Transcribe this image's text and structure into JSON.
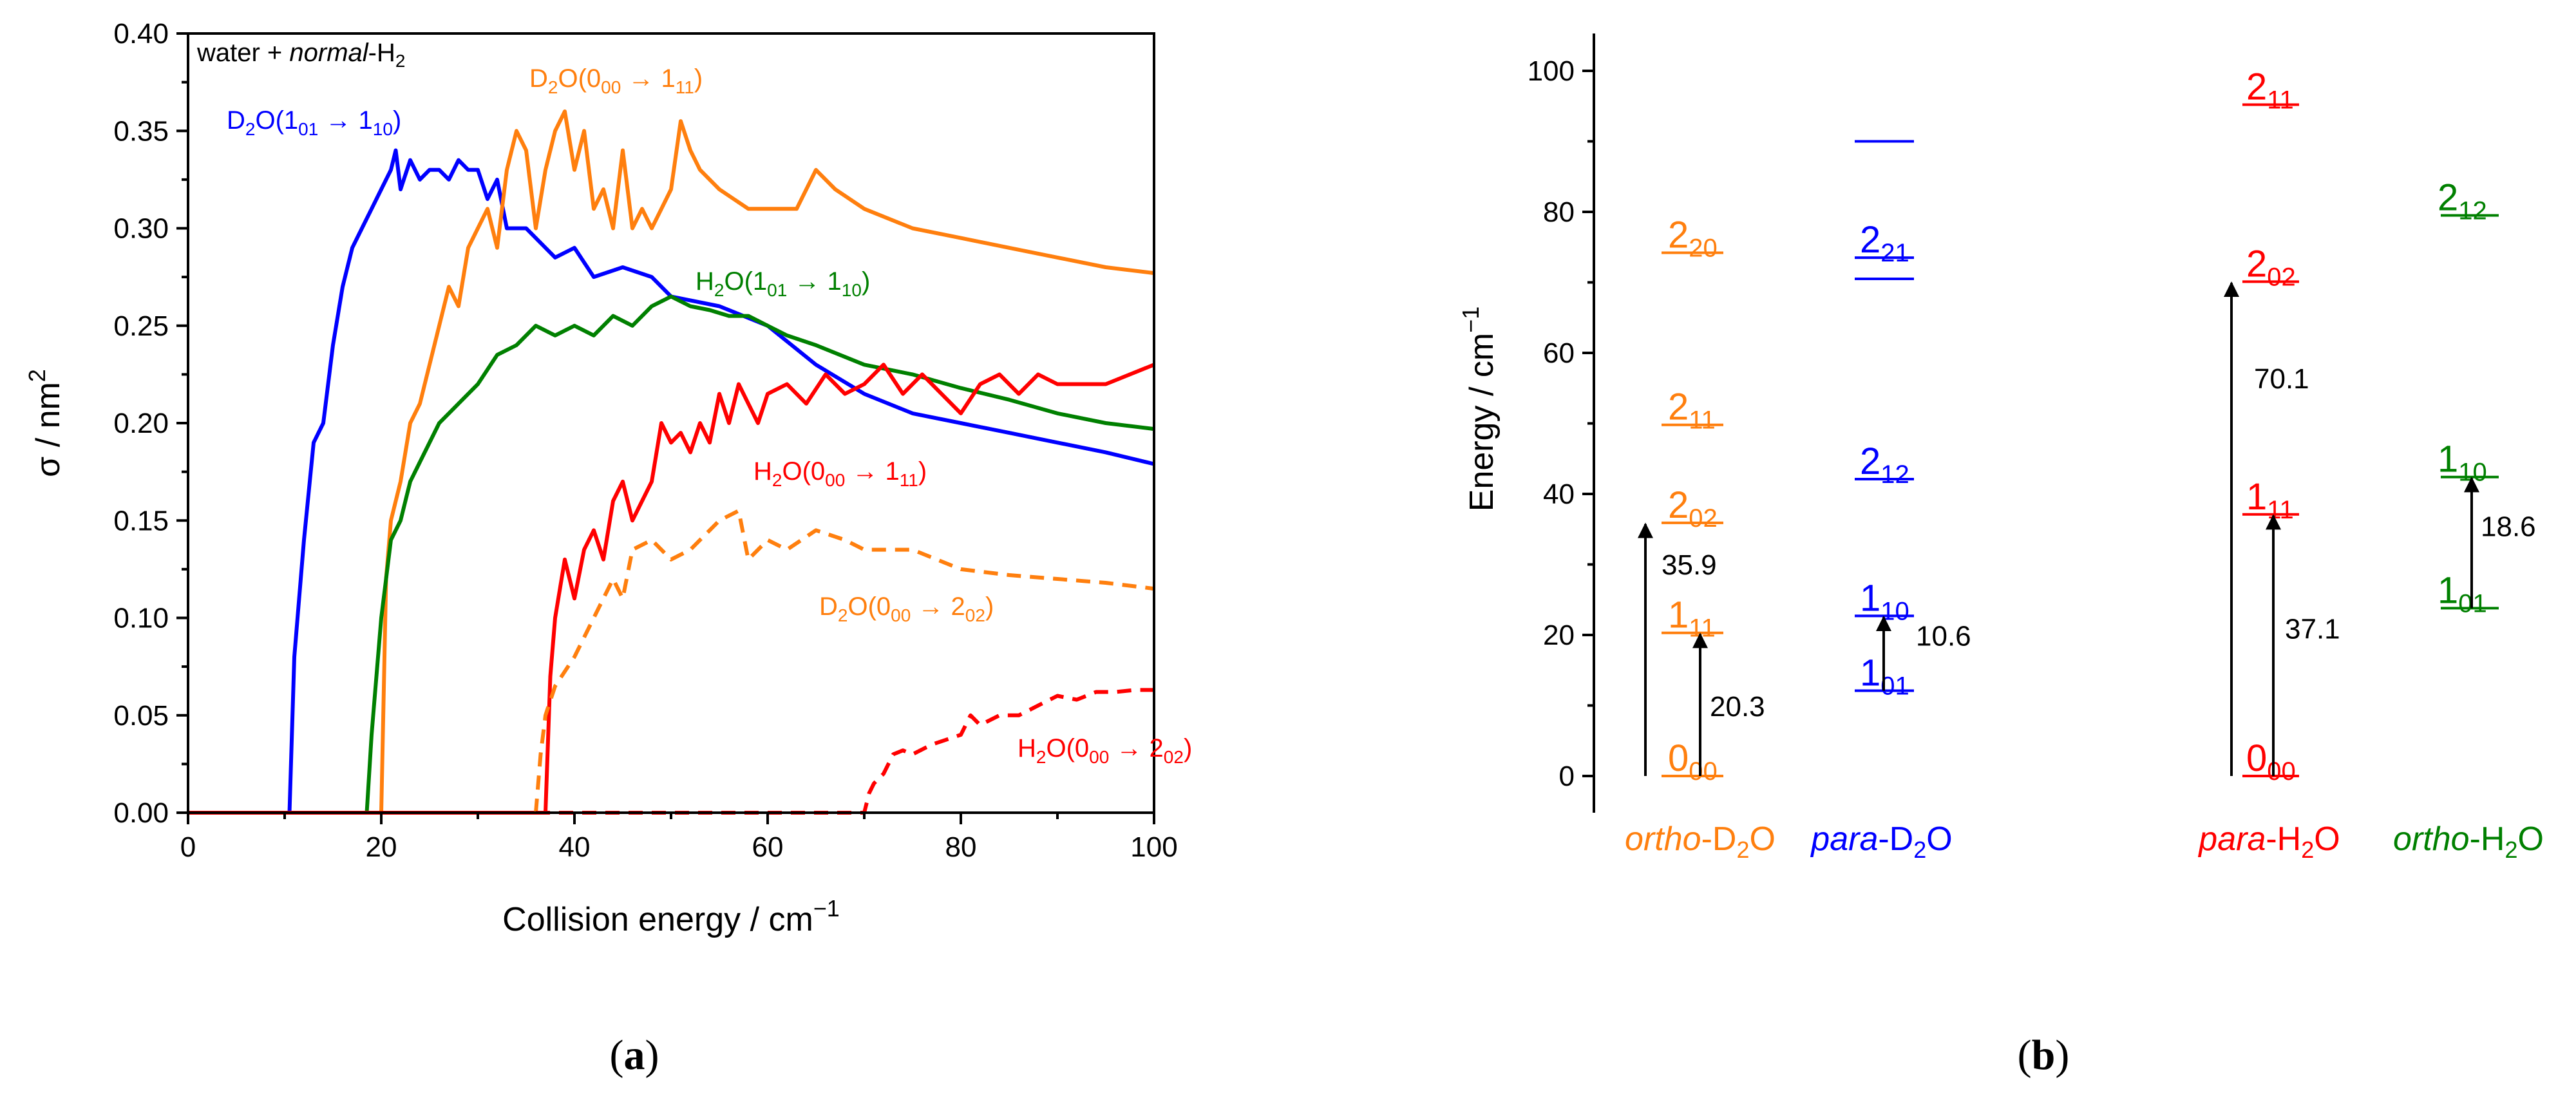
{
  "panels": {
    "a_label_open": "(",
    "a_label_letter": "a",
    "a_label_close": ")",
    "b_label_open": "(",
    "b_label_letter": "b",
    "b_label_close": ")"
  },
  "colors": {
    "d2o_ortho": "#ff7f0e",
    "d2o_para": "#0000ff",
    "h2o_para": "#ff0000",
    "h2o_ortho": "#008000",
    "axis": "#000000"
  },
  "chart_data": [
    {
      "type": "line",
      "panel": "a",
      "title": "",
      "inset_text": {
        "prefix": "water + ",
        "italic": "normal",
        "suffix": "-H",
        "sub": "2"
      },
      "xlabel": {
        "text": "Collision energy / cm",
        "sup": "−1"
      },
      "ylabel": {
        "text": "σ / nm",
        "sup": "2"
      },
      "xlim": [
        0,
        100
      ],
      "ylim": [
        0,
        0.4
      ],
      "xticks": [
        "0",
        "20",
        "40",
        "60",
        "80",
        "100"
      ],
      "xtick_values": [
        0,
        20,
        40,
        60,
        80,
        100
      ],
      "yticks": [
        "0.00",
        "0.05",
        "0.10",
        "0.15",
        "0.20",
        "0.25",
        "0.30",
        "0.35",
        "0.40"
      ],
      "ytick_values": [
        0,
        0.05,
        0.1,
        0.15,
        0.2,
        0.25,
        0.3,
        0.35,
        0.4
      ],
      "series": [
        {
          "name": "D2O(101 → 110)",
          "label": {
            "main": "D",
            "sub1": "2",
            "mid": "O(1",
            "sub2": "01",
            "arrow": " → 1",
            "sub3": "10",
            "end": ")"
          },
          "color": "#0000ff",
          "dashed": false,
          "x": [
            0,
            10.5,
            11,
            12,
            13,
            14,
            15,
            16,
            17,
            18,
            19,
            20,
            21,
            21.5,
            22,
            23,
            24,
            25,
            26,
            27,
            28,
            29,
            30,
            31,
            32,
            33,
            35,
            38,
            40,
            42,
            45,
            48,
            50,
            55,
            60,
            65,
            70,
            75,
            80,
            85,
            90,
            95,
            100
          ],
          "y": [
            0,
            0,
            0.08,
            0.14,
            0.19,
            0.2,
            0.24,
            0.27,
            0.29,
            0.3,
            0.31,
            0.32,
            0.33,
            0.34,
            0.32,
            0.335,
            0.325,
            0.33,
            0.33,
            0.325,
            0.335,
            0.33,
            0.33,
            0.315,
            0.325,
            0.3,
            0.3,
            0.285,
            0.29,
            0.275,
            0.28,
            0.275,
            0.265,
            0.26,
            0.25,
            0.23,
            0.215,
            0.205,
            0.2,
            0.195,
            0.19,
            0.185,
            0.179
          ]
        },
        {
          "name": "D2O(000 → 111)",
          "label": {
            "main": "D",
            "sub1": "2",
            "mid": "O(0",
            "sub2": "00",
            "arrow": " → 1",
            "sub3": "11",
            "end": ")"
          },
          "color": "#ff7f0e",
          "dashed": false,
          "x": [
            0,
            20,
            20.5,
            21,
            22,
            23,
            24,
            25,
            26,
            27,
            28,
            29,
            30,
            31,
            32,
            33,
            34,
            35,
            36,
            37,
            38,
            39,
            40,
            41,
            42,
            43,
            44,
            45,
            46,
            47,
            48,
            49,
            50,
            51,
            52,
            53,
            55,
            58,
            60,
            63,
            65,
            67,
            70,
            75,
            80,
            85,
            90,
            95,
            100
          ],
          "y": [
            0,
            0,
            0.12,
            0.15,
            0.17,
            0.2,
            0.21,
            0.23,
            0.25,
            0.27,
            0.26,
            0.29,
            0.3,
            0.31,
            0.29,
            0.33,
            0.35,
            0.34,
            0.3,
            0.33,
            0.35,
            0.36,
            0.33,
            0.35,
            0.31,
            0.32,
            0.3,
            0.34,
            0.3,
            0.31,
            0.3,
            0.31,
            0.32,
            0.355,
            0.34,
            0.33,
            0.32,
            0.31,
            0.31,
            0.31,
            0.33,
            0.32,
            0.31,
            0.3,
            0.295,
            0.29,
            0.285,
            0.28,
            0.277
          ]
        },
        {
          "name": "H2O(101 → 110)",
          "label": {
            "main": "H",
            "sub1": "2",
            "mid": "O(1",
            "sub2": "01",
            "arrow": " → 1",
            "sub3": "10",
            "end": ")"
          },
          "color": "#008000",
          "dashed": false,
          "x": [
            0,
            18.5,
            19,
            20,
            21,
            22,
            23,
            24,
            26,
            28,
            30,
            32,
            34,
            36,
            38,
            40,
            42,
            44,
            46,
            48,
            50,
            52,
            54,
            56,
            58,
            60,
            62,
            65,
            70,
            75,
            80,
            85,
            90,
            95,
            100
          ],
          "y": [
            0,
            0,
            0.04,
            0.1,
            0.14,
            0.15,
            0.17,
            0.18,
            0.2,
            0.21,
            0.22,
            0.235,
            0.24,
            0.25,
            0.245,
            0.25,
            0.245,
            0.255,
            0.25,
            0.26,
            0.265,
            0.26,
            0.258,
            0.255,
            0.255,
            0.25,
            0.245,
            0.24,
            0.23,
            0.225,
            0.218,
            0.212,
            0.205,
            0.2,
            0.197
          ]
        },
        {
          "name": "H2O(000 → 111)",
          "label": {
            "main": "H",
            "sub1": "2",
            "mid": "O(0",
            "sub2": "00",
            "arrow": " → 1",
            "sub3": "11",
            "end": ")"
          },
          "color": "#ff0000",
          "dashed": false,
          "x": [
            0,
            37,
            37.5,
            38,
            39,
            40,
            41,
            42,
            43,
            44,
            45,
            46,
            47,
            48,
            49,
            50,
            51,
            52,
            53,
            54,
            55,
            56,
            57,
            58,
            59,
            60,
            62,
            64,
            66,
            68,
            70,
            72,
            74,
            76,
            78,
            80,
            82,
            84,
            86,
            88,
            90,
            95,
            100
          ],
          "y": [
            0,
            0,
            0.07,
            0.1,
            0.13,
            0.11,
            0.135,
            0.145,
            0.13,
            0.16,
            0.17,
            0.15,
            0.16,
            0.17,
            0.2,
            0.19,
            0.195,
            0.185,
            0.2,
            0.19,
            0.215,
            0.2,
            0.22,
            0.21,
            0.2,
            0.215,
            0.22,
            0.21,
            0.225,
            0.215,
            0.22,
            0.23,
            0.215,
            0.225,
            0.215,
            0.205,
            0.22,
            0.225,
            0.215,
            0.225,
            0.22,
            0.22,
            0.23
          ]
        },
        {
          "name": "D2O(000 → 202)",
          "label": {
            "main": "D",
            "sub1": "2",
            "mid": "O(0",
            "sub2": "00",
            "arrow": " → 2",
            "sub3": "02",
            "end": ")"
          },
          "color": "#ff7f0e",
          "dashed": true,
          "x": [
            0,
            36,
            36.5,
            37,
            38,
            40,
            42,
            44,
            45,
            46,
            48,
            50,
            52,
            55,
            57,
            58,
            60,
            62,
            65,
            68,
            70,
            75,
            80,
            85,
            90,
            95,
            100
          ],
          "y": [
            0,
            0,
            0.03,
            0.05,
            0.065,
            0.08,
            0.1,
            0.12,
            0.11,
            0.135,
            0.14,
            0.13,
            0.135,
            0.15,
            0.155,
            0.13,
            0.14,
            0.135,
            0.145,
            0.14,
            0.135,
            0.135,
            0.125,
            0.122,
            0.12,
            0.118,
            0.115
          ]
        },
        {
          "name": "H2O(000 → 202)",
          "label": {
            "main": "H",
            "sub1": "2",
            "mid": "O(0",
            "sub2": "00",
            "arrow": " → 2",
            "sub3": "02",
            "end": ")"
          },
          "color": "#ff0000",
          "dashed": true,
          "x": [
            0,
            70,
            70.5,
            71,
            72,
            73,
            74,
            75,
            77,
            80,
            81,
            82,
            84,
            86,
            88,
            90,
            92,
            94,
            96,
            98,
            100
          ],
          "y": [
            0,
            0,
            0.01,
            0.015,
            0.02,
            0.03,
            0.032,
            0.03,
            0.035,
            0.04,
            0.05,
            0.045,
            0.05,
            0.05,
            0.055,
            0.06,
            0.058,
            0.062,
            0.062,
            0.063,
            0.063
          ]
        }
      ]
    },
    {
      "type": "level_diagram",
      "panel": "b",
      "ylabel": {
        "text": "Energy / cm",
        "sup": "−1"
      },
      "ylim": [
        0,
        100
      ],
      "yticks": [
        "0",
        "20",
        "40",
        "60",
        "80",
        "100"
      ],
      "ytick_values": [
        0,
        20,
        40,
        60,
        80,
        100
      ],
      "columns": [
        {
          "name": "ortho-D2O",
          "label": {
            "italic": "ortho",
            "rest": "-D",
            "sub": "2",
            "end": "O"
          },
          "color": "#ff7f0e",
          "levels": [
            {
              "energy": 0,
              "label": "0",
              "sub": "00"
            },
            {
              "energy": 20.3,
              "label": "1",
              "sub": "11"
            },
            {
              "energy": 35.9,
              "label": "2",
              "sub": "02"
            },
            {
              "energy": 49.8,
              "label": "2",
              "sub": "11"
            },
            {
              "energy": 74.2,
              "label": "2",
              "sub": "20"
            }
          ],
          "arrows": [
            {
              "from": 0,
              "to": 35.9,
              "label": "35.9"
            },
            {
              "from": 0,
              "to": 20.3,
              "label": "20.3"
            }
          ]
        },
        {
          "name": "para-D2O",
          "label": {
            "italic": "para",
            "rest": "-D",
            "sub": "2",
            "end": "O"
          },
          "color": "#0000ff",
          "levels": [
            {
              "energy": 12.1,
              "label": "1",
              "sub": "01"
            },
            {
              "energy": 22.7,
              "label": "1",
              "sub": "10"
            },
            {
              "energy": 42.1,
              "label": "2",
              "sub": "12"
            },
            {
              "energy": 70.5,
              "label": "",
              "sub": ""
            },
            {
              "energy": 73.5,
              "label": "2",
              "sub": "21"
            },
            {
              "energy": 90.0,
              "label": "",
              "sub": ""
            }
          ],
          "arrows": [
            {
              "from": 12.1,
              "to": 22.7,
              "label": "10.6"
            }
          ]
        },
        {
          "name": "para-H2O",
          "label": {
            "italic": "para",
            "rest": "-H",
            "sub": "2",
            "end": "O"
          },
          "color": "#ff0000",
          "levels": [
            {
              "energy": 0,
              "label": "0",
              "sub": "00"
            },
            {
              "energy": 37.1,
              "label": "1",
              "sub": "11"
            },
            {
              "energy": 70.1,
              "label": "2",
              "sub": "02"
            },
            {
              "energy": 95.2,
              "label": "2",
              "sub": "11"
            }
          ],
          "arrows": [
            {
              "from": 0,
              "to": 70.1,
              "label": "70.1"
            },
            {
              "from": 0,
              "to": 37.1,
              "label": "37.1"
            }
          ]
        },
        {
          "name": "ortho-H2O",
          "label": {
            "italic": "ortho",
            "rest": "-H",
            "sub": "2",
            "end": "O"
          },
          "color": "#008000",
          "levels": [
            {
              "energy": 23.8,
              "label": "1",
              "sub": "01"
            },
            {
              "energy": 42.4,
              "label": "1",
              "sub": "10"
            },
            {
              "energy": 79.5,
              "label": "2",
              "sub": "12"
            }
          ],
          "arrows": [
            {
              "from": 23.8,
              "to": 42.4,
              "label": "18.6"
            }
          ]
        }
      ]
    }
  ]
}
